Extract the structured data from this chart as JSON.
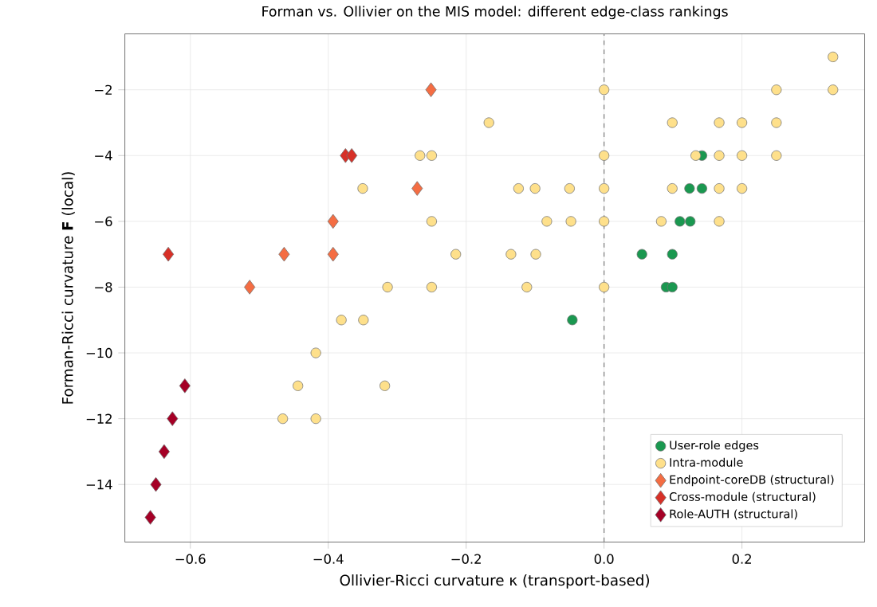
{
  "chart_data": {
    "type": "scatter",
    "title": "Forman vs. Ollivier on the MIS model: different edge-class rankings",
    "xlabel": "Ollivier-Ricci curvature κ (transport-based)",
    "ylabel": "Forman-Ricci curvature **F** (local)",
    "xlim": [
      -0.695,
      0.378
    ],
    "ylim": [
      -15.75,
      -0.3
    ],
    "xticks": [
      {
        "value": -0.6,
        "label": "−0.6"
      },
      {
        "value": -0.4,
        "label": "−0.4"
      },
      {
        "value": -0.2,
        "label": "−0.2"
      },
      {
        "value": 0.0,
        "label": "0.0"
      },
      {
        "value": 0.2,
        "label": "0.2"
      }
    ],
    "yticks": [
      {
        "value": -14,
        "label": "−14"
      },
      {
        "value": -12,
        "label": "−12"
      },
      {
        "value": -10,
        "label": "−10"
      },
      {
        "value": -8,
        "label": "−8"
      },
      {
        "value": -6,
        "label": "−6"
      },
      {
        "value": -4,
        "label": "−4"
      },
      {
        "value": -2,
        "label": "−2"
      }
    ],
    "grid": true,
    "legend": "bottom right",
    "ref_lines": [
      {
        "axis": "x",
        "value": 0,
        "color": "#888888",
        "line_style": "dashed"
      }
    ],
    "series": [
      {
        "name": "User-role edges",
        "color": "#1a9850",
        "marker": "circle",
        "x": [
          0.142,
          0.124,
          0.142,
          0.11,
          0.125,
          0.055,
          0.099,
          0.09,
          0.099,
          -0.046
        ],
        "values": [
          -4,
          -5,
          -5,
          -6,
          -6,
          -7,
          -7,
          -8,
          -8,
          -9
        ]
      },
      {
        "name": "Intra-module",
        "color": "#fee08b",
        "marker": "circle",
        "x": [
          0.332,
          0,
          0.25,
          0.332,
          -0.167,
          0.099,
          0.167,
          0.2,
          0.25,
          -0.267,
          -0.25,
          0,
          0.133,
          0.167,
          0.2,
          0.25,
          -0.35,
          -0.124,
          -0.1,
          -0.05,
          0,
          0.099,
          0.167,
          0.2,
          -0.25,
          -0.083,
          -0.048,
          0,
          0.083,
          0.167,
          -0.215,
          -0.135,
          -0.099,
          -0.314,
          -0.25,
          -0.112,
          0,
          -0.381,
          -0.349,
          -0.418,
          -0.444,
          -0.318,
          -0.466,
          -0.418
        ],
        "values": [
          -1,
          -2,
          -2,
          -2,
          -3,
          -3,
          -3,
          -3,
          -3,
          -4,
          -4,
          -4,
          -4,
          -4,
          -4,
          -4,
          -5,
          -5,
          -5,
          -5,
          -5,
          -5,
          -5,
          -5,
          -6,
          -6,
          -6,
          -6,
          -6,
          -6,
          -7,
          -7,
          -7,
          -8,
          -8,
          -8,
          -8,
          -9,
          -9,
          -10,
          -11,
          -11,
          -12,
          -12
        ]
      },
      {
        "name": "Endpoint-coreDB (structural)",
        "color": "#f46d43",
        "marker": "diamond",
        "x": [
          -0.251,
          -0.271,
          -0.393,
          -0.464,
          -0.393,
          -0.514
        ],
        "values": [
          -2,
          -5,
          -6,
          -7,
          -7,
          -8
        ]
      },
      {
        "name": "Cross-module (structural)",
        "color": "#d73027",
        "marker": "diamond",
        "x": [
          -0.375,
          -0.366,
          -0.632
        ],
        "values": [
          -4,
          -4,
          -7
        ]
      },
      {
        "name": "Role-AUTH (structural)",
        "color": "#a50026",
        "marker": "diamond",
        "x": [
          -0.608,
          -0.626,
          -0.638,
          -0.65,
          -0.658
        ],
        "values": [
          -11,
          -12,
          -13,
          -14,
          -15
        ]
      }
    ]
  }
}
